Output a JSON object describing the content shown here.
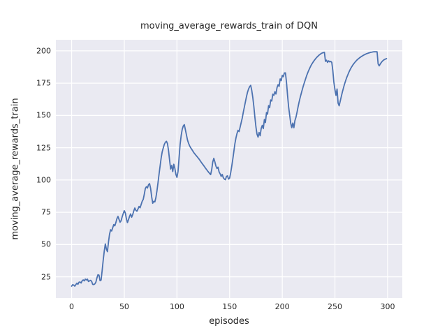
{
  "figure": {
    "background": "#ffffff"
  },
  "chart_data": {
    "type": "line",
    "title": "moving_average_rewards_train of DQN",
    "xlabel": "episodes",
    "ylabel": "moving_average_rewards_train",
    "series": [
      {
        "name": "moving_average_rewards_train",
        "x_start": 0,
        "x_step": 1,
        "values": [
          17.8,
          18.9,
          18.6,
          17.8,
          19.0,
          20.1,
          19.2,
          20.8,
          21.0,
          20.2,
          21.9,
          22.6,
          21.9,
          23.2,
          22.6,
          23.2,
          21.4,
          21.9,
          22.3,
          21.5,
          19.2,
          19.0,
          19.5,
          20.8,
          24.1,
          26.6,
          26.3,
          22.0,
          22.5,
          30.0,
          38.0,
          45.0,
          50.5,
          46.5,
          44.5,
          52.0,
          58.0,
          61.5,
          60.5,
          63.0,
          65.5,
          64.5,
          67.0,
          70.0,
          71.8,
          69.5,
          67.3,
          68.5,
          71.5,
          74.0,
          76.2,
          74.5,
          70.0,
          67.0,
          69.3,
          71.8,
          73.7,
          71.2,
          73.2,
          76.0,
          78.3,
          76.5,
          75.8,
          77.5,
          79.5,
          78.5,
          81.0,
          83.5,
          85.0,
          89.0,
          93.5,
          94.8,
          93.8,
          96.3,
          97.2,
          93.5,
          87.0,
          82.0,
          83.5,
          83.0,
          86.3,
          91.5,
          97.8,
          104.5,
          110.8,
          117.0,
          121.8,
          124.8,
          127.6,
          129.2,
          130.0,
          128.2,
          122.8,
          115.5,
          108.5,
          111.3,
          106.5,
          112.2,
          109.0,
          104.3,
          102.1,
          106.5,
          117.0,
          127.5,
          134.3,
          139.2,
          141.8,
          142.9,
          139.0,
          135.0,
          131.0,
          128.5,
          126.5,
          125.0,
          123.8,
          122.5,
          121.2,
          120.2,
          119.2,
          118.2,
          117.2,
          116.2,
          115.0,
          113.8,
          112.7,
          111.6,
          110.5,
          109.3,
          108.2,
          107.1,
          106.1,
          105.1,
          104.2,
          108.0,
          114.0,
          116.8,
          114.0,
          110.8,
          108.9,
          110.0,
          106.3,
          104.8,
          102.8,
          104.3,
          101.8,
          100.7,
          100.2,
          102.8,
          103.2,
          100.7,
          101.5,
          105.5,
          110.5,
          116.0,
          122.0,
          128.0,
          132.5,
          136.0,
          138.5,
          137.5,
          141.0,
          144.5,
          148.0,
          152.5,
          156.5,
          160.5,
          164.5,
          168.0,
          170.5,
          172.3,
          173.3,
          169.5,
          164.0,
          157.0,
          148.5,
          141.0,
          135.5,
          133.2,
          136.8,
          134.3,
          140.0,
          142.3,
          139.8,
          146.8,
          144.5,
          152.2,
          151.0,
          157.6,
          156.0,
          162.0,
          161.2,
          166.5,
          165.5,
          168.4,
          166.6,
          171.5,
          173.8,
          172.5,
          178.3,
          177.0,
          181.0,
          180.0,
          182.9,
          183.0,
          175.7,
          165.7,
          156.7,
          150.4,
          144.0,
          140.5,
          144.1,
          140.5,
          146.0,
          148.6,
          152.5,
          156.7,
          160.5,
          163.9,
          167.0,
          170.0,
          172.9,
          175.5,
          178.0,
          180.5,
          182.7,
          184.7,
          186.5,
          188.2,
          189.7,
          191.0,
          192.2,
          193.3,
          194.3,
          195.2,
          196.0,
          196.8,
          197.4,
          198.0,
          198.4,
          198.7,
          198.9,
          191.9,
          192.8,
          191.1,
          192.3,
          191.5,
          191.9,
          191.1,
          184.6,
          175.6,
          170.0,
          165.5,
          170.5,
          159.5,
          157.5,
          161.0,
          164.5,
          168.0,
          171.0,
          174.0,
          176.5,
          179.0,
          181.0,
          183.0,
          184.8,
          186.4,
          187.8,
          189.1,
          190.2,
          191.2,
          192.1,
          193.0,
          193.7,
          194.4,
          195.0,
          195.6,
          196.1,
          196.6,
          197.0,
          197.4,
          197.8,
          198.1,
          198.4,
          198.6,
          198.9,
          199.0,
          199.2,
          199.3,
          199.3,
          199.3,
          199.3,
          189.9,
          188.4,
          189.8,
          191.0,
          192.0,
          192.8,
          193.3,
          193.7,
          194.0
        ]
      }
    ],
    "xlim": [
      -14.95,
      313.95
    ],
    "ylim": [
      8.6,
      208.6
    ],
    "x_ticks": [
      0,
      50,
      100,
      150,
      200,
      250,
      300
    ],
    "y_ticks": [
      25,
      50,
      75,
      100,
      125,
      150,
      175,
      200
    ],
    "grid": true,
    "legend": false,
    "style": {
      "line_color": "#4c72b0",
      "line_width": 1.8,
      "axes_background": "#eaeaf2",
      "grid_color": "#ffffff",
      "grid_width": 1.2,
      "text_color": "#262626"
    }
  }
}
